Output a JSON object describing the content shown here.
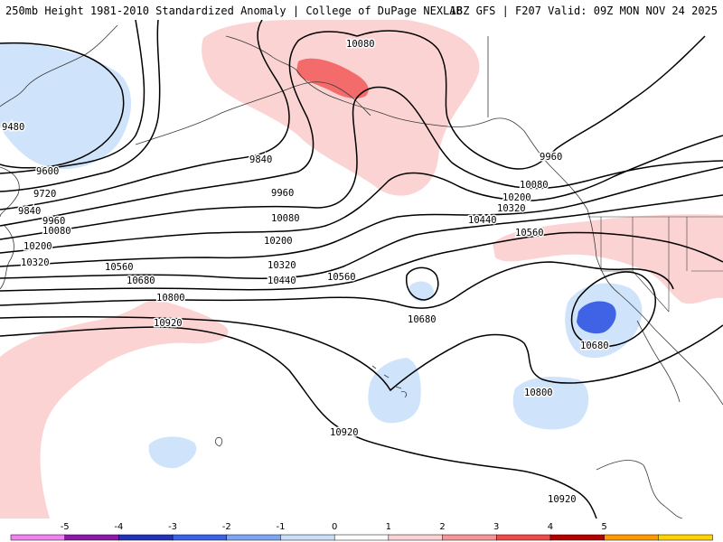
{
  "header": {
    "title_left": "250mb Height 1981-2010 Standardized Anomaly | College of DuPage NEXLAB",
    "title_right": "18Z GFS | F207 Valid: 09Z MON NOV 24 2025"
  },
  "contour_labels": [
    "9480",
    "9600",
    "9720",
    "9840",
    "9960",
    "10080",
    "10200",
    "10320",
    "9840",
    "9960",
    "10080",
    "10200",
    "10320",
    "10440",
    "10560",
    "10560",
    "10680",
    "10800",
    "10920",
    "10080",
    "9960",
    "10080",
    "10200",
    "10320",
    "10440",
    "10560",
    "10680",
    "10680",
    "10800",
    "10920",
    "10920"
  ],
  "colorbar": {
    "ticks": [
      "-5",
      "-4",
      "-3",
      "-2",
      "-1",
      "0",
      "1",
      "2",
      "3",
      "4",
      "5"
    ],
    "colors": [
      "#ee82ee",
      "#8b1aa8",
      "#2332b6",
      "#3a62e6",
      "#7ea5f4",
      "#c8def9",
      "#ffffff",
      "#fbd5d5",
      "#f59595",
      "#ef4a4a",
      "#b50000",
      "#ff9900",
      "#ffd200"
    ]
  },
  "anomaly_colors": {
    "neg_light": "#cfe4fb",
    "neg_mid": "#3f63e4",
    "pos_light": "#fcd3d3",
    "pos_mid": "#f46b6b"
  }
}
